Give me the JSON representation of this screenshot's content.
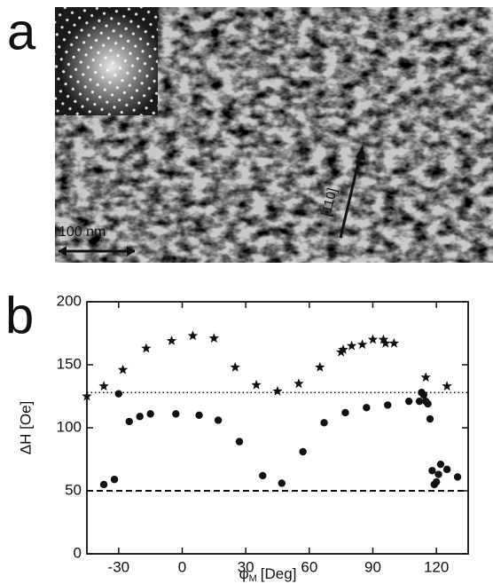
{
  "panel_a": {
    "label": "a",
    "scale_bar": "100 nm",
    "direction": "[110]"
  },
  "chart_data": {
    "type": "scatter",
    "panel_label": "b",
    "ylabel": "ΔH [Oe]",
    "xlabel": "φ",
    "xlabel_sub": "M",
    "xlabel_unit": "[Deg]",
    "xlim": [
      -45,
      135
    ],
    "xticks": [
      -30,
      0,
      30,
      60,
      90,
      120
    ],
    "ylim": [
      0,
      200
    ],
    "yticks": [
      0,
      50,
      100,
      150,
      200
    ],
    "hlines": [
      {
        "value": 128,
        "style": "dotted"
      },
      {
        "value": 50,
        "style": "dashed"
      }
    ],
    "series": [
      {
        "marker": "star",
        "color": "#111111",
        "x": [
          -45,
          -37,
          -28,
          -17,
          -5,
          5,
          15,
          25,
          35,
          45,
          55,
          65,
          75,
          76,
          80,
          85,
          90,
          95,
          96,
          100,
          115,
          125
        ],
        "values": [
          125,
          133,
          146,
          163,
          169,
          173,
          171,
          148,
          134,
          129,
          135,
          148,
          160,
          162,
          165,
          166,
          170,
          170,
          167,
          167,
          140,
          133
        ]
      },
      {
        "marker": "circle",
        "color": "#111111",
        "x": [
          -37,
          -32,
          -30,
          -25,
          -20,
          -15,
          -3,
          8,
          17,
          27,
          38,
          47,
          57,
          67,
          77,
          87,
          97,
          107,
          112,
          113,
          114,
          115,
          116,
          117,
          118,
          119,
          120,
          121,
          122,
          125,
          130
        ],
        "values": [
          55,
          59,
          127,
          105,
          109,
          111,
          111,
          110,
          106,
          89,
          62,
          56,
          81,
          104,
          112,
          116,
          118,
          121,
          121,
          128,
          126,
          121,
          119,
          107,
          66,
          55,
          57,
          63,
          71,
          67,
          61
        ]
      }
    ]
  }
}
